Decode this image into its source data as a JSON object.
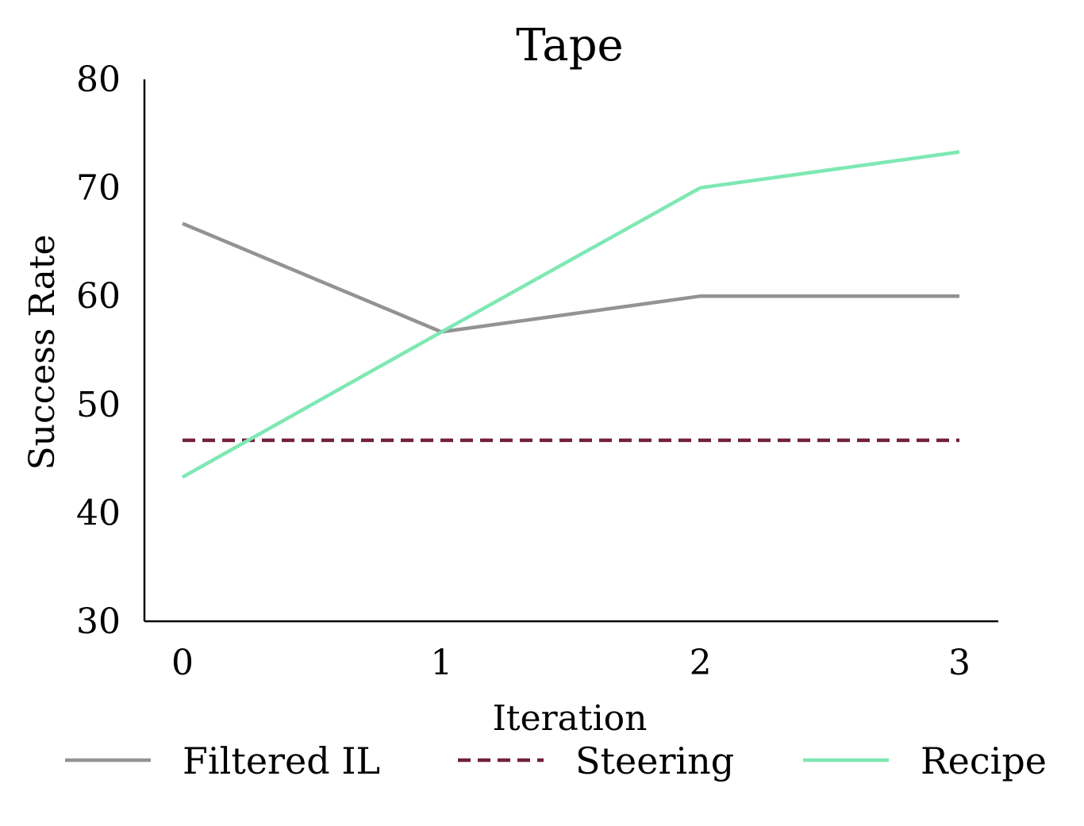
{
  "chart_data": {
    "type": "line",
    "title": "Tape",
    "xlabel": "Iteration",
    "ylabel": "Success Rate",
    "x": [
      0,
      1,
      2,
      3
    ],
    "xticks": [
      "0",
      "1",
      "2",
      "3"
    ],
    "ylim": [
      30,
      80
    ],
    "yticks": [
      "30",
      "40",
      "50",
      "60",
      "70",
      "80"
    ],
    "grid": false,
    "legend_position": "bottom",
    "series": [
      {
        "name": "Filtered IL",
        "values": [
          66.7,
          56.7,
          60.0,
          60.0
        ],
        "color": "#939393",
        "style": "solid"
      },
      {
        "name": "Steering",
        "values": [
          46.7,
          46.7,
          46.7,
          46.7
        ],
        "color": "#72203f",
        "style": "dashed"
      },
      {
        "name": "Recipe",
        "values": [
          43.3,
          56.7,
          70.0,
          73.3
        ],
        "color": "#7ee8b3",
        "style": "solid"
      }
    ]
  }
}
